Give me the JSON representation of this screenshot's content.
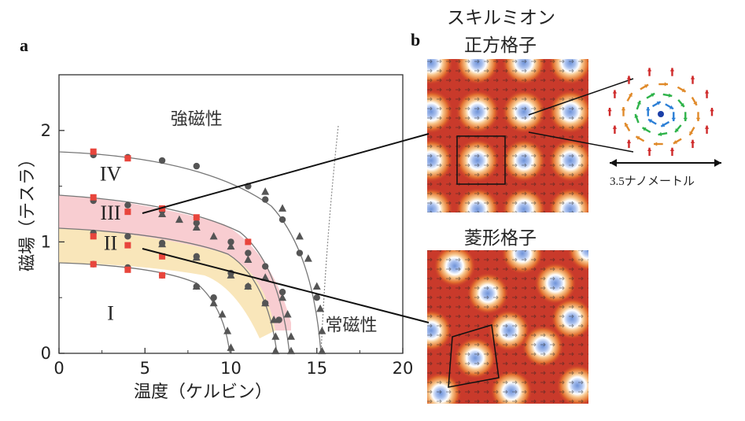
{
  "panel_a": {
    "letter": "a",
    "chart_data": {
      "type": "scatter",
      "xlabel": "温度（ケルビン）",
      "ylabel": "磁場（テスラ）",
      "xlim": [
        0,
        20
      ],
      "ylim": [
        0,
        2.5
      ],
      "xticks": [
        "0",
        "5",
        "10",
        "15",
        "20"
      ],
      "yticks": [
        "0",
        "1",
        "2"
      ],
      "phase_labels": [
        {
          "text": "強磁性",
          "x": 8,
          "y": 2.05
        },
        {
          "text": "IV",
          "x": 3,
          "y": 1.55
        },
        {
          "text": "III",
          "x": 3,
          "y": 1.2
        },
        {
          "text": "II",
          "x": 3,
          "y": 0.93
        },
        {
          "text": "I",
          "x": 3,
          "y": 0.3
        },
        {
          "text": "常磁性",
          "x": 17,
          "y": 0.2
        }
      ],
      "series": [
        {
          "marker": "circle",
          "color": "#555555",
          "points": [
            [
              2,
              1.78
            ],
            [
              4,
              1.76
            ],
            [
              6,
              1.73
            ],
            [
              8,
              1.68
            ],
            [
              11,
              1.5
            ],
            [
              12,
              1.38
            ],
            [
              13,
              1.2
            ],
            [
              14,
              0.9
            ],
            [
              15,
              0.5
            ]
          ]
        },
        {
          "marker": "circle",
          "color": "#555555",
          "points": [
            [
              2,
              1.37
            ],
            [
              4,
              1.33
            ],
            [
              6,
              1.28
            ],
            [
              8,
              1.17
            ],
            [
              10,
              1.0
            ],
            [
              11,
              0.9
            ],
            [
              12,
              0.78
            ],
            [
              13,
              0.55
            ]
          ]
        },
        {
          "marker": "circle",
          "color": "#555555",
          "points": [
            [
              2,
              1.08
            ],
            [
              4,
              1.05
            ],
            [
              6,
              0.99
            ],
            [
              8,
              0.87
            ],
            [
              10,
              0.72
            ],
            [
              11,
              0.6
            ],
            [
              12,
              0.45
            ],
            [
              12.8,
              0.3
            ]
          ]
        },
        {
          "marker": "circle",
          "color": "#555555",
          "points": [
            [
              2,
              0.8
            ],
            [
              4,
              0.77
            ],
            [
              6,
              0.7
            ],
            [
              8,
              0.6
            ],
            [
              9,
              0.5
            ]
          ]
        },
        {
          "marker": "triangle",
          "color": "#555555",
          "points": [
            [
              6,
              1.25
            ],
            [
              7,
              1.2
            ],
            [
              8,
              1.13
            ],
            [
              9,
              1.05
            ],
            [
              10,
              0.96
            ],
            [
              11,
              0.84
            ],
            [
              12,
              0.68
            ],
            [
              13,
              0.5
            ],
            [
              13.3,
              0.35
            ],
            [
              13.5,
              0.15
            ],
            [
              13.5,
              0.02
            ]
          ]
        },
        {
          "marker": "triangle",
          "color": "#555555",
          "points": [
            [
              6,
              0.98
            ],
            [
              8,
              0.86
            ],
            [
              10,
              0.7
            ],
            [
              11,
              0.6
            ],
            [
              12,
              0.45
            ],
            [
              12.5,
              0.3
            ],
            [
              12.6,
              0.15
            ],
            [
              12.6,
              0.02
            ]
          ]
        },
        {
          "marker": "triangle",
          "color": "#555555",
          "points": [
            [
              8,
              0.6
            ],
            [
              9,
              0.45
            ],
            [
              9.5,
              0.35
            ],
            [
              9.8,
              0.2
            ],
            [
              10,
              0.05
            ]
          ]
        },
        {
          "marker": "triangle",
          "color": "#555555",
          "points": [
            [
              12,
              1.45
            ],
            [
              13,
              1.3
            ],
            [
              14,
              1.05
            ],
            [
              14.5,
              0.85
            ],
            [
              15,
              0.6
            ],
            [
              15.2,
              0.4
            ],
            [
              15.3,
              0.2
            ],
            [
              15.3,
              0.02
            ]
          ]
        },
        {
          "marker": "square",
          "color": "#e8453c",
          "points": [
            [
              2,
              1.81
            ],
            [
              4,
              1.75
            ],
            [
              2,
              1.4
            ],
            [
              4,
              1.27
            ],
            [
              6,
              1.3
            ],
            [
              8,
              1.22
            ],
            [
              11,
              1.0
            ],
            [
              2,
              1.05
            ],
            [
              4,
              0.97
            ],
            [
              6,
              0.87
            ],
            [
              2,
              0.8
            ],
            [
              4,
              0.75
            ],
            [
              6,
              0.7
            ]
          ]
        }
      ]
    }
  },
  "panel_b": {
    "letter": "b",
    "title_line1": "スキルミオン",
    "title_line2": "正方格子",
    "square_caption": "菱形格子",
    "scale_label": "3.5ナノメートル"
  }
}
